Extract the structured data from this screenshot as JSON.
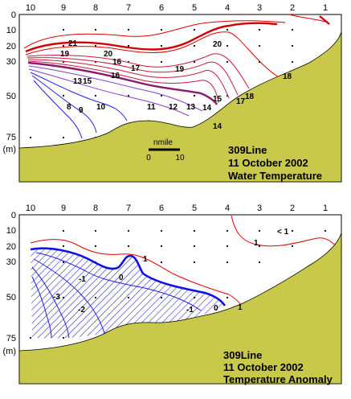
{
  "top_panel": {
    "station_ticks": [
      "10",
      "9",
      "8",
      "7",
      "6",
      "5",
      "4",
      "3",
      "2",
      "1"
    ],
    "depth_ticks": [
      "0",
      "10",
      "20",
      "30",
      "50",
      "75"
    ],
    "depth_unit": "(m)",
    "title_lines": [
      "309Line",
      "11 October 2002",
      "Water Temperature"
    ],
    "scale_bar": {
      "label": "nmile",
      "start": "0",
      "end": "10"
    },
    "contour_labels": [
      "21",
      "20",
      "20",
      "19",
      "18",
      "17",
      "16",
      "15",
      "14",
      "13",
      "13",
      "12",
      "11",
      "10",
      "9",
      "8",
      "19",
      "18",
      "17",
      "16",
      "15",
      "14"
    ]
  },
  "bottom_panel": {
    "station_ticks": [
      "10",
      "9",
      "8",
      "7",
      "6",
      "5",
      "4",
      "3",
      "2",
      "1"
    ],
    "depth_ticks": [
      "0",
      "10",
      "20",
      "30",
      "50",
      "75"
    ],
    "depth_unit": "(m)",
    "title_lines": [
      "309Line",
      "11 October 2002",
      "Temperature Anomaly"
    ],
    "contour_labels": [
      "< 1",
      "1",
      "1",
      "0",
      "-1",
      "0",
      "-1",
      "-2",
      "-3",
      "1"
    ]
  },
  "colors": {
    "land": "#c8c84a",
    "warm_contour": "#e00000",
    "warm_bold": "#d40000",
    "thermocline": "#8b1a6b",
    "cool_contour": "#2020e0",
    "zero_contour": "#1010e8",
    "hatch": "#2020c0"
  }
}
